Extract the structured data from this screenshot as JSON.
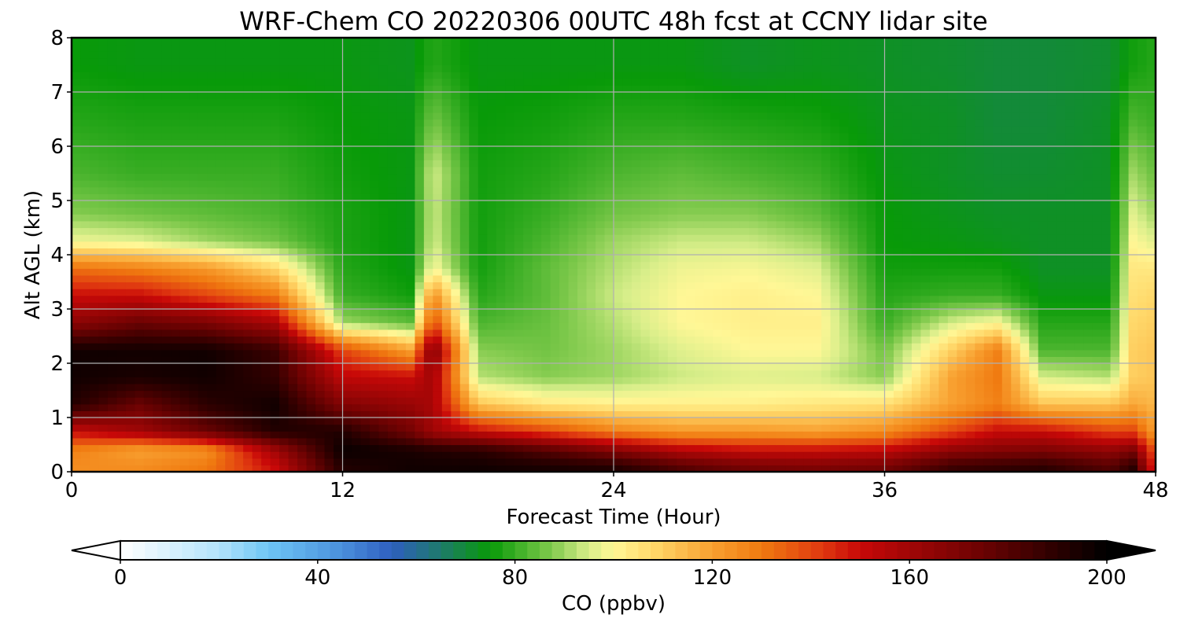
{
  "chart_data": {
    "type": "heatmap",
    "subtype": "filled-contour time-height cross section",
    "title": "WRF-Chem CO  20220306 00UTC 48h fcst at CCNY lidar site",
    "xlabel": "Forecast Time (Hour)",
    "ylabel": "Alt AGL (km)",
    "xlim": [
      0,
      48
    ],
    "ylim": [
      0,
      8
    ],
    "xticks": [
      "0",
      "12",
      "24",
      "36",
      "48"
    ],
    "yticks": [
      "0",
      "1",
      "2",
      "3",
      "4",
      "5",
      "6",
      "7",
      "8"
    ],
    "grid": true,
    "colorbar": {
      "label": "CO  (ppbv)",
      "ticks": [
        "0",
        "40",
        "80",
        "120",
        "160",
        "200"
      ],
      "range": [
        0,
        200
      ],
      "extend": "both",
      "orientation": "horizontal",
      "colors": {
        "0": "#ffffff",
        "20": "#b3e3fb",
        "30": "#6ec6f5",
        "45": "#4a8fdc",
        "55": "#2e5fbf",
        "65": "#1e7a6a",
        "75": "#089a08",
        "87": "#7cc84a",
        "95": "#d8ee8a",
        "100": "#fff796",
        "108": "#ffd86a",
        "120": "#f8a030",
        "130": "#f07a10",
        "142": "#e03a10",
        "150": "#c80808",
        "160": "#a00606",
        "175": "#6a0202",
        "190": "#2a0000",
        "200": "#000000"
      }
    },
    "x_hours": [
      0,
      3,
      6,
      9,
      12,
      15,
      16,
      18,
      21,
      24,
      27,
      30,
      33,
      36,
      39,
      41,
      43,
      46,
      47,
      48
    ],
    "y_km": [
      0.1,
      0.4,
      0.75,
      1.25,
      1.75,
      2.25,
      2.75,
      3.25,
      3.75,
      4.25,
      4.75,
      5.5,
      6.5,
      7.5
    ],
    "values_ppbv": [
      [
        125,
        125,
        130,
        150,
        192,
        196,
        196,
        196,
        194,
        192,
        180,
        172,
        170,
        172,
        186,
        188,
        190,
        180,
        190,
        140
      ],
      [
        128,
        120,
        124,
        160,
        198,
        194,
        192,
        190,
        180,
        168,
        155,
        150,
        150,
        152,
        165,
        168,
        170,
        164,
        170,
        135
      ],
      [
        150,
        160,
        175,
        192,
        192,
        172,
        160,
        150,
        140,
        128,
        122,
        122,
        120,
        125,
        140,
        150,
        150,
        140,
        140,
        120
      ],
      [
        192,
        175,
        190,
        196,
        168,
        162,
        158,
        112,
        104,
        102,
        102,
        102,
        104,
        106,
        120,
        128,
        112,
        112,
        118,
        115
      ],
      [
        196,
        194,
        196,
        188,
        152,
        150,
        160,
        92,
        88,
        90,
        94,
        96,
        95,
        88,
        120,
        130,
        95,
        92,
        110,
        112
      ],
      [
        196,
        196,
        196,
        186,
        140,
        120,
        170,
        88,
        86,
        90,
        96,
        100,
        100,
        86,
        110,
        128,
        82,
        82,
        110,
        112
      ],
      [
        165,
        175,
        170,
        158,
        90,
        84,
        140,
        82,
        85,
        92,
        100,
        102,
        102,
        80,
        95,
        100,
        78,
        78,
        108,
        110
      ],
      [
        150,
        150,
        140,
        130,
        80,
        76,
        125,
        78,
        84,
        94,
        100,
        102,
        100,
        78,
        80,
        80,
        74,
        74,
        106,
        108
      ],
      [
        132,
        128,
        122,
        108,
        78,
        74,
        100,
        76,
        84,
        92,
        98,
        99,
        96,
        76,
        76,
        76,
        72,
        72,
        104,
        104
      ],
      [
        98,
        96,
        90,
        86,
        77,
        74,
        95,
        76,
        82,
        90,
        94,
        94,
        90,
        75,
        74,
        73,
        72,
        72,
        100,
        96
      ],
      [
        88,
        86,
        84,
        82,
        77,
        74,
        94,
        76,
        80,
        86,
        88,
        88,
        84,
        75,
        73,
        72,
        72,
        72,
        96,
        90
      ],
      [
        82,
        80,
        80,
        80,
        76,
        74,
        95,
        76,
        78,
        82,
        84,
        82,
        80,
        74,
        72,
        71,
        71,
        72,
        90,
        85
      ],
      [
        78,
        77,
        77,
        77,
        75,
        74,
        86,
        75,
        76,
        78,
        78,
        77,
        76,
        73,
        72,
        70,
        70,
        72,
        82,
        80
      ],
      [
        75,
        74,
        74,
        74,
        74,
        73,
        78,
        74,
        74,
        74,
        74,
        72,
        73,
        72,
        71,
        70,
        70,
        71,
        76,
        78
      ]
    ]
  }
}
